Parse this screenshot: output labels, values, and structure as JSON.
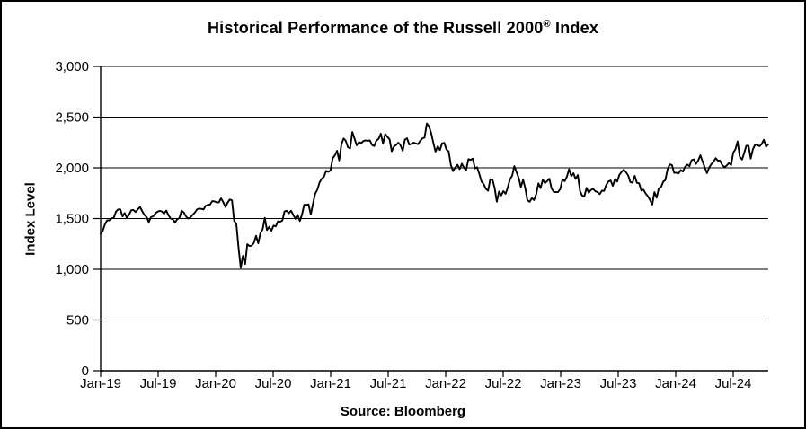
{
  "title": {
    "text": "Historical Performance of the Russell 2000",
    "registered": "®",
    "suffix": " Index"
  },
  "source": "Source: Bloomberg",
  "chart_data": {
    "type": "line",
    "title": "Historical Performance of the Russell 2000® Index",
    "xlabel": "",
    "ylabel": "Index Level",
    "ylim": [
      0,
      3000
    ],
    "ytick_interval": 500,
    "ytick_labels": [
      "0",
      "500",
      "1,000",
      "1,500",
      "2,000",
      "2,500",
      "3,000"
    ],
    "xtick_labels": [
      "Jan-19",
      "Jul-19",
      "Jan-20",
      "Jul-20",
      "Jan-21",
      "Jul-21",
      "Jan-22",
      "Jul-22",
      "Jan-23",
      "Jul-23",
      "Jan-24",
      "Jul-24"
    ],
    "grid": "horizontal",
    "legend": "none",
    "line_color": "#000000",
    "background_color": "#ffffff",
    "series": [
      {
        "name": "Russell 2000 Index",
        "frequency": "weekly",
        "start": "Jan-2019",
        "end": "Oct-2024",
        "values": [
          1349,
          1380,
          1447,
          1482,
          1482,
          1502,
          1506,
          1569,
          1590,
          1590,
          1521,
          1554,
          1505,
          1539,
          1582,
          1584,
          1565,
          1591,
          1614,
          1573,
          1535,
          1514,
          1465,
          1514,
          1522,
          1550,
          1567,
          1576,
          1570,
          1548,
          1579,
          1533,
          1499,
          1493,
          1460,
          1495,
          1505,
          1578,
          1560,
          1520,
          1500,
          1511,
          1536,
          1558,
          1589,
          1598,
          1596,
          1589,
          1625,
          1635,
          1638,
          1672,
          1669,
          1660,
          1658,
          1699,
          1662,
          1614,
          1657,
          1688,
          1679,
          1476,
          1449,
          1210,
          1014,
          1132,
          1052,
          1247,
          1229,
          1233,
          1260,
          1330,
          1256,
          1356,
          1394,
          1507,
          1387,
          1418,
          1379,
          1431,
          1423,
          1473,
          1468,
          1480,
          1569,
          1577,
          1552,
          1578,
          1535,
          1497,
          1537,
          1475,
          1539,
          1637,
          1634,
          1641,
          1538,
          1644,
          1744,
          1785,
          1855,
          1892,
          1911,
          1970,
          1960,
          1975,
          2092,
          2123,
          2168,
          2073,
          2233,
          2289,
          2266,
          2201,
          2192,
          2353,
          2287,
          2221,
          2253,
          2243,
          2263,
          2271,
          2266,
          2271,
          2225,
          2215,
          2269,
          2286,
          2336,
          2238,
          2334,
          2306,
          2280,
          2163,
          2210,
          2226,
          2248,
          2223,
          2168,
          2277,
          2292,
          2228,
          2237,
          2248,
          2241,
          2233,
          2266,
          2291,
          2297,
          2437,
          2411,
          2343,
          2245,
          2159,
          2212,
          2174,
          2242,
          2245,
          2179,
          2163,
          2026,
          1968,
          2003,
          2030,
          1987,
          2041,
          2001,
          1980,
          2086,
          2078,
          2091,
          1995,
          2005,
          1941,
          1864,
          1840,
          1793,
          1774,
          1887,
          1883,
          1801,
          1666,
          1766,
          1728,
          1770,
          1744,
          1807,
          1885,
          1922,
          2017,
          1957,
          1900,
          1810,
          1882,
          1798,
          1680,
          1665,
          1702,
          1682,
          1742,
          1847,
          1800,
          1882,
          1849,
          1869,
          1893,
          1797,
          1763,
          1760,
          1761,
          1793,
          1887,
          1868,
          1912,
          1986,
          1918,
          1947,
          1890,
          1928,
          1772,
          1726,
          1721,
          1802,
          1755,
          1781,
          1792,
          1769,
          1760,
          1741,
          1774,
          1773,
          1831,
          1866,
          1875,
          1822,
          1888,
          1865,
          1931,
          1960,
          1981,
          1957,
          1925,
          1859,
          1853,
          1921,
          1852,
          1847,
          1776,
          1785,
          1746,
          1720,
          1681,
          1637,
          1760,
          1705,
          1798,
          1807,
          1863,
          1880,
          1985,
          2034,
          2027,
          1951,
          1951,
          1944,
          1978,
          1963,
          2010,
          2032,
          2016,
          2076,
          2083,
          2039,
          2072,
          2124,
          2063,
          2003,
          1948,
          2002,
          2036,
          2060,
          2096,
          2070,
          2070,
          2027,
          2006,
          2022,
          2048,
          2027,
          2148,
          2184,
          2260,
          2109,
          2081,
          2144,
          2218,
          2218,
          2091,
          2182,
          2228,
          2225,
          2213,
          2234,
          2276,
          2208,
          2233
        ]
      }
    ]
  }
}
